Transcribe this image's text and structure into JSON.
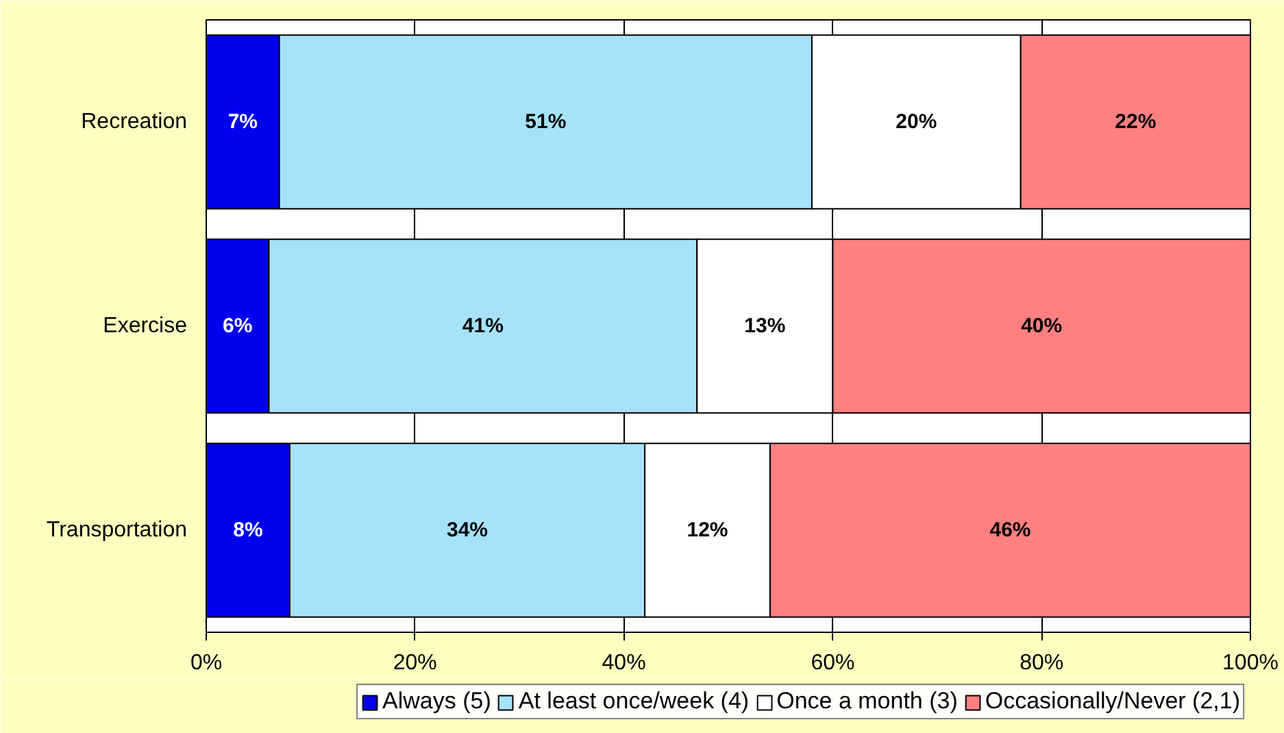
{
  "chart_data": {
    "type": "bar",
    "orientation": "horizontal",
    "stacked": true,
    "categories": [
      "Recreation",
      "Exercise",
      "Transportation"
    ],
    "series": [
      {
        "name": "Always (5)",
        "color": "#0000ee",
        "values": [
          7,
          6,
          8
        ],
        "value_labels": [
          "7%",
          "6%",
          "8%"
        ]
      },
      {
        "name": "At least once/week (4)",
        "color": "#a6e3fa",
        "values": [
          51,
          41,
          34
        ],
        "value_labels": [
          "51%",
          "41%",
          "34%"
        ]
      },
      {
        "name": "Once a month (3)",
        "color": "#ffffff",
        "values": [
          20,
          13,
          12
        ],
        "value_labels": [
          "20%",
          "13%",
          "12%"
        ]
      },
      {
        "name": "Occasionally/Never (2,1)",
        "color": "#ff8080",
        "values": [
          22,
          40,
          46
        ],
        "value_labels": [
          "22%",
          "40%",
          "46%"
        ]
      }
    ],
    "xlim": [
      0,
      100
    ],
    "xticks": [
      {
        "value": 0,
        "label": "0%"
      },
      {
        "value": 20,
        "label": "20%"
      },
      {
        "value": 40,
        "label": "40%"
      },
      {
        "value": 60,
        "label": "60%"
      },
      {
        "value": 80,
        "label": "80%"
      },
      {
        "value": 100,
        "label": "100%"
      }
    ],
    "grid": "x",
    "legend": "bottom"
  }
}
